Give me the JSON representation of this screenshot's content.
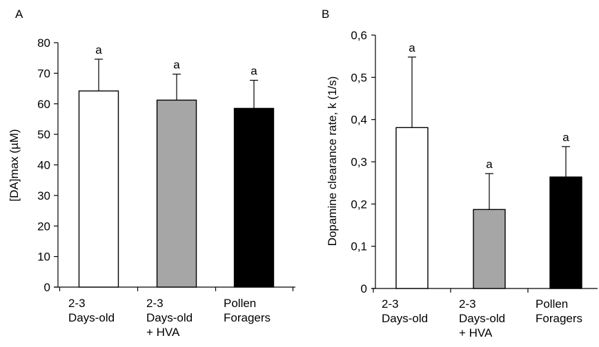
{
  "chart_data": [
    {
      "panel_label": "A",
      "type": "bar",
      "ylabel": "[DA]max (µM)",
      "xlabel": "",
      "ylim": [
        0,
        80
      ],
      "yticks": [
        0,
        10,
        20,
        30,
        40,
        50,
        60,
        70,
        80
      ],
      "ytick_labels": [
        "0",
        "10",
        "20",
        "30",
        "40",
        "50",
        "60",
        "70",
        "80"
      ],
      "categories": [
        [
          "2-3",
          "Days-old"
        ],
        [
          "2-3",
          "Days-old",
          "+ HVA"
        ],
        [
          "Pollen",
          "Foragers"
        ]
      ],
      "values": [
        64.2,
        61.2,
        58.5
      ],
      "errors": [
        10.4,
        8.5,
        9.2
      ],
      "annotations": [
        "a",
        "a",
        "a"
      ],
      "colors": [
        "#ffffff",
        "#a6a6a6",
        "#000000"
      ],
      "grid": false,
      "legend": "none"
    },
    {
      "panel_label": "B",
      "type": "bar",
      "ylabel": "Dopamine clearance rate, k (1/s)",
      "xlabel": "",
      "ylim": [
        0,
        0.6
      ],
      "yticks": [
        0,
        0.1,
        0.2,
        0.3,
        0.4,
        0.5,
        0.6
      ],
      "ytick_labels": [
        "0",
        "0,1",
        "0,2",
        "0,3",
        "0,4",
        "0,5",
        "0,6"
      ],
      "categories": [
        [
          "2-3",
          "Days-old"
        ],
        [
          "2-3",
          "Days-old",
          "+ HVA"
        ],
        [
          "Pollen",
          "Foragers"
        ]
      ],
      "values": [
        0.381,
        0.187,
        0.264
      ],
      "errors": [
        0.167,
        0.085,
        0.072
      ],
      "annotations": [
        "a",
        "a",
        "a"
      ],
      "colors": [
        "#ffffff",
        "#a6a6a6",
        "#000000"
      ],
      "grid": false,
      "legend": "none"
    }
  ]
}
